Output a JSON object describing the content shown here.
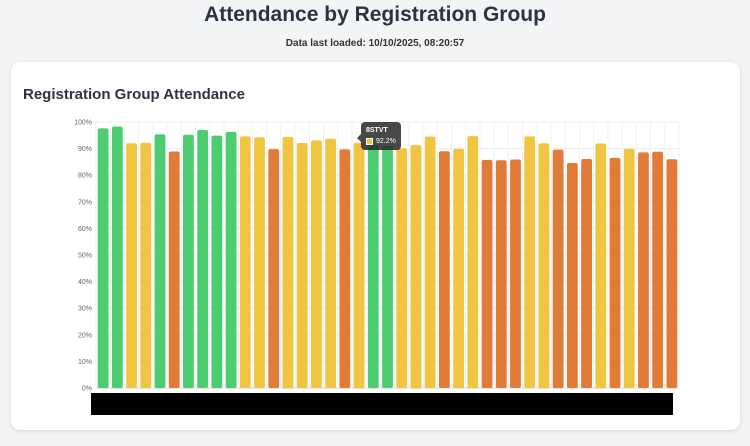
{
  "header": {
    "title": "Attendance by Registration Group",
    "last_loaded": "Data last loaded: 10/10/2025, 08:20:57"
  },
  "card": {
    "title": "Registration Group Attendance"
  },
  "tooltip": {
    "group": "8STVT",
    "value": "92.2%",
    "swatch_color": "#f0c542"
  },
  "colors": {
    "green": "#4dcc72",
    "yellow": "#f0c542",
    "orange": "#e07b38"
  },
  "chart_data": {
    "type": "bar",
    "title": "",
    "xlabel": "",
    "ylabel": "",
    "ylim": [
      0,
      100
    ],
    "y_ticks": [
      "0%",
      "10%",
      "20%",
      "30%",
      "40%",
      "50%",
      "60%",
      "70%",
      "80%",
      "90%",
      "100%"
    ],
    "grid": true,
    "x_labels_redacted": true,
    "values": [
      97.6,
      98.3,
      92.0,
      92.2,
      95.4,
      88.9,
      95.2,
      97.0,
      94.9,
      96.3,
      94.6,
      94.2,
      89.8,
      94.4,
      92.1,
      93.1,
      93.7,
      89.7,
      92.2,
      91.5,
      91.0,
      90.1,
      91.3,
      94.5,
      89.0,
      89.9,
      94.7,
      85.7,
      85.6,
      85.9,
      94.6,
      92.0,
      89.6,
      84.6,
      86.1,
      91.9,
      86.5,
      89.9,
      88.6,
      88.8,
      86.0
    ],
    "colors": [
      "green",
      "green",
      "yellow",
      "yellow",
      "green",
      "orange",
      "green",
      "green",
      "green",
      "green",
      "yellow",
      "yellow",
      "orange",
      "yellow",
      "yellow",
      "yellow",
      "yellow",
      "orange",
      "yellow",
      "green",
      "green",
      "yellow",
      "yellow",
      "yellow",
      "orange",
      "yellow",
      "yellow",
      "orange",
      "orange",
      "orange",
      "yellow",
      "yellow",
      "orange",
      "orange",
      "orange",
      "yellow",
      "orange",
      "yellow",
      "orange",
      "orange",
      "orange"
    ]
  }
}
